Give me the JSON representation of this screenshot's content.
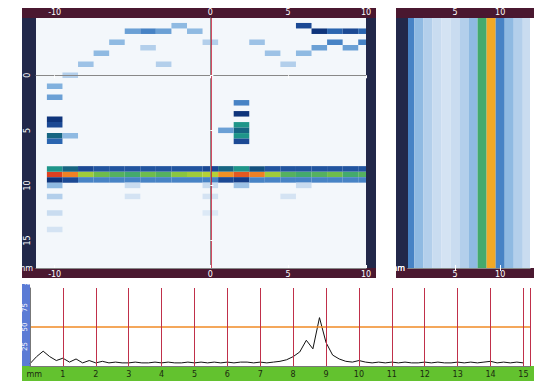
{
  "chart_data": [
    {
      "type": "heatmap",
      "x_label": "mm",
      "xlim": [
        -11.2,
        10
      ],
      "xticks": [
        -10,
        0,
        5,
        10
      ],
      "ylim": [
        -5.2,
        17.5
      ],
      "yticks": [
        0,
        5,
        10,
        15
      ],
      "color_range": [
        0,
        100
      ],
      "cursor": 0,
      "cells": [
        [
          -10,
          9,
          98
        ],
        [
          -9,
          9,
          90
        ],
        [
          -8,
          9,
          70
        ],
        [
          -7,
          9,
          65
        ],
        [
          -6,
          9,
          62
        ],
        [
          -5,
          9,
          60
        ],
        [
          -4,
          9,
          65
        ],
        [
          -3,
          9,
          62
        ],
        [
          -2,
          9,
          68
        ],
        [
          -1,
          9,
          70
        ],
        [
          0,
          9,
          72
        ],
        [
          1,
          9,
          88
        ],
        [
          2,
          9,
          95
        ],
        [
          3,
          9,
          90
        ],
        [
          4,
          9,
          70
        ],
        [
          5,
          9,
          62
        ],
        [
          6,
          9,
          60
        ],
        [
          7,
          9,
          62
        ],
        [
          8,
          9,
          65
        ],
        [
          9,
          9,
          60
        ],
        [
          10,
          9,
          62
        ],
        [
          -10,
          8.5,
          55
        ],
        [
          -9,
          8.5,
          50
        ],
        [
          -8,
          8.5,
          40
        ],
        [
          -7,
          8.5,
          38
        ],
        [
          -6,
          8.5,
          38
        ],
        [
          -5,
          8.5,
          38
        ],
        [
          -4,
          8.5,
          38
        ],
        [
          -3,
          8.5,
          38
        ],
        [
          -2,
          8.5,
          38
        ],
        [
          -1,
          8.5,
          38
        ],
        [
          0,
          8.5,
          40
        ],
        [
          1,
          8.5,
          50
        ],
        [
          2,
          8.5,
          55
        ],
        [
          3,
          8.5,
          48
        ],
        [
          4,
          8.5,
          38
        ],
        [
          5,
          8.5,
          38
        ],
        [
          6,
          8.5,
          38
        ],
        [
          7,
          8.5,
          38
        ],
        [
          8,
          8.5,
          38
        ],
        [
          9,
          8.5,
          38
        ],
        [
          10,
          8.5,
          38
        ],
        [
          -10,
          9.5,
          45
        ],
        [
          -9,
          9.5,
          40
        ],
        [
          -8,
          9.5,
          30
        ],
        [
          -7,
          9.5,
          30
        ],
        [
          -6,
          9.5,
          30
        ],
        [
          -5,
          9.5,
          30
        ],
        [
          -4,
          9.5,
          30
        ],
        [
          -3,
          9.5,
          30
        ],
        [
          -2,
          9.5,
          30
        ],
        [
          -1,
          9.5,
          30
        ],
        [
          0,
          9.5,
          30
        ],
        [
          1,
          9.5,
          40
        ],
        [
          2,
          9.5,
          42
        ],
        [
          3,
          9.5,
          30
        ],
        [
          4,
          9.5,
          30
        ],
        [
          5,
          9.5,
          30
        ],
        [
          6,
          9.5,
          30
        ],
        [
          7,
          9.5,
          30
        ],
        [
          8,
          9.5,
          30
        ],
        [
          9,
          9.5,
          30
        ],
        [
          10,
          9.5,
          30
        ],
        [
          -10,
          10,
          20
        ],
        [
          -5,
          10,
          12
        ],
        [
          0,
          10,
          12
        ],
        [
          2,
          10,
          18
        ],
        [
          6,
          10,
          12
        ],
        [
          -10,
          4,
          45
        ],
        [
          -10,
          4.5,
          40
        ],
        [
          -10,
          5.5,
          50
        ],
        [
          -10,
          6,
          35
        ],
        [
          -9,
          5.5,
          20
        ],
        [
          2,
          2.5,
          30
        ],
        [
          2,
          3.5,
          45
        ],
        [
          2,
          4.5,
          55
        ],
        [
          2,
          5,
          50
        ],
        [
          2,
          5.5,
          55
        ],
        [
          2,
          6,
          40
        ],
        [
          1,
          5,
          25
        ],
        [
          -5,
          -4,
          25
        ],
        [
          -4,
          -4,
          30
        ],
        [
          -3,
          -4,
          25
        ],
        [
          -2,
          -4.5,
          20
        ],
        [
          -1,
          -4,
          20
        ],
        [
          6,
          -4.5,
          40
        ],
        [
          7,
          -4,
          45
        ],
        [
          8,
          -4,
          35
        ],
        [
          8,
          -3,
          30
        ],
        [
          9,
          -2.5,
          25
        ],
        [
          -6,
          -3,
          20
        ],
        [
          -7,
          -2,
          20
        ],
        [
          -8,
          -1,
          18
        ],
        [
          -9,
          0,
          15
        ],
        [
          3,
          -3,
          18
        ],
        [
          4,
          -2,
          18
        ],
        [
          5,
          -1,
          15
        ],
        [
          -10,
          1,
          22
        ],
        [
          -10,
          2,
          25
        ],
        [
          0,
          -3,
          15
        ],
        [
          -4,
          -2.5,
          15
        ],
        [
          6,
          -2,
          20
        ],
        [
          7,
          -2.5,
          25
        ],
        [
          -3,
          -1,
          15
        ],
        [
          9,
          -4,
          40
        ],
        [
          10,
          -4,
          35
        ],
        [
          10,
          -3,
          30
        ],
        [
          -10,
          11,
          15
        ],
        [
          -5,
          11,
          10
        ],
        [
          0,
          11,
          10
        ],
        [
          5,
          11,
          10
        ],
        [
          -10,
          12.5,
          12
        ],
        [
          0,
          12.5,
          8
        ],
        [
          -10,
          14,
          10
        ]
      ]
    },
    {
      "type": "heatmap",
      "x_label": "mm",
      "xlim": [
        -0.2,
        13.3
      ],
      "xticks": [
        5,
        10
      ],
      "color_range": [
        0,
        100
      ],
      "x": [
        0,
        1,
        2,
        3,
        4,
        5,
        6,
        7,
        8,
        9,
        10,
        11,
        12,
        13
      ],
      "values": [
        30,
        20,
        15,
        12,
        10,
        12,
        15,
        20,
        60,
        85,
        30,
        20,
        15,
        12
      ]
    },
    {
      "type": "line",
      "x_label": "mm",
      "y_label": "%",
      "xlim": [
        0,
        15.2
      ],
      "xticks": [
        1,
        2,
        3,
        4,
        5,
        6,
        7,
        8,
        9,
        10,
        11,
        12,
        13,
        14,
        15
      ],
      "ylim": [
        0,
        100
      ],
      "yticks": [
        25,
        50,
        75
      ],
      "gate": 50,
      "x": [
        0,
        0.2,
        0.4,
        0.6,
        0.8,
        1,
        1.2,
        1.4,
        1.6,
        1.8,
        2,
        2.2,
        2.4,
        2.6,
        2.8,
        3,
        3.2,
        3.4,
        3.6,
        3.8,
        4,
        4.2,
        4.4,
        4.6,
        4.8,
        5,
        5.2,
        5.4,
        5.6,
        5.8,
        6,
        6.2,
        6.4,
        6.6,
        6.8,
        7,
        7.2,
        7.4,
        7.6,
        7.8,
        8,
        8.2,
        8.4,
        8.6,
        8.8,
        9,
        9.2,
        9.4,
        9.6,
        9.8,
        10,
        10.2,
        10.4,
        10.6,
        10.8,
        11,
        11.2,
        11.4,
        11.6,
        11.8,
        12,
        12.2,
        12.4,
        12.6,
        12.8,
        13,
        13.2,
        13.4,
        13.6,
        13.8,
        14,
        14.2,
        14.4,
        14.6,
        14.8,
        15
      ],
      "values": [
        3,
        12,
        19,
        12,
        7,
        10,
        5,
        9,
        4,
        7,
        4,
        6,
        4,
        5,
        4,
        4,
        5,
        4,
        4,
        5,
        4,
        5,
        4,
        4,
        5,
        4,
        5,
        4,
        5,
        4,
        5,
        4,
        5,
        5,
        4,
        5,
        4,
        5,
        6,
        8,
        12,
        18,
        33,
        22,
        62,
        30,
        14,
        9,
        6,
        5,
        7,
        5,
        4,
        5,
        4,
        5,
        4,
        5,
        4,
        4,
        5,
        4,
        5,
        4,
        4,
        5,
        4,
        5,
        4,
        5,
        6,
        4,
        5,
        4,
        5,
        4
      ]
    }
  ]
}
